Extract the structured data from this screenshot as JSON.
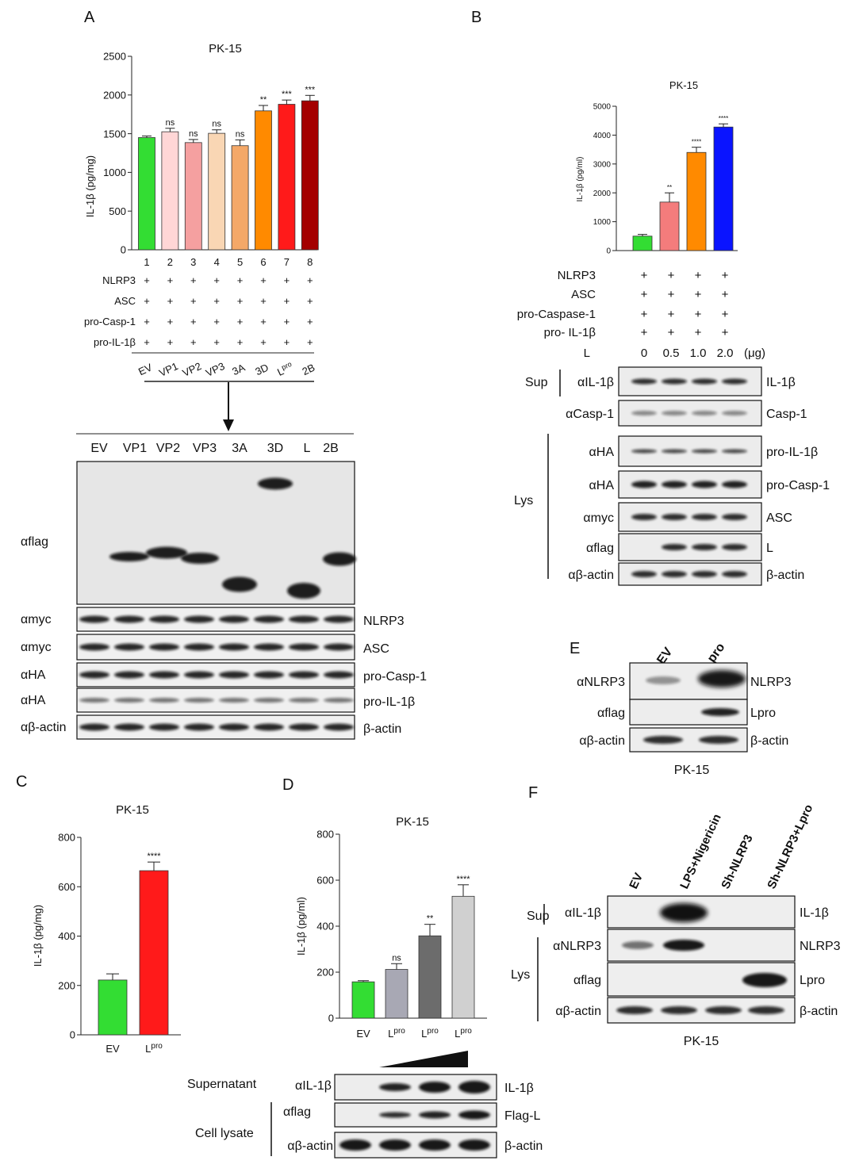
{
  "panels": {
    "A": {
      "label": "A",
      "chart_data": {
        "type": "bar",
        "title": "PK-15",
        "ylabel": "IL-1β (pg/mg)",
        "ylim": [
          0,
          2500
        ],
        "yticks": [
          0,
          500,
          1000,
          1500,
          2000,
          2500
        ],
        "categories": [
          "1",
          "2",
          "3",
          "4",
          "5",
          "6",
          "7",
          "8"
        ],
        "values": [
          1450,
          1525,
          1385,
          1505,
          1345,
          1795,
          1880,
          1925
        ],
        "errors": [
          20,
          45,
          40,
          45,
          75,
          70,
          55,
          70
        ],
        "colors": [
          "#33dd33",
          "#ffd6d6",
          "#f5a0a0",
          "#f9d6b4",
          "#f4a868",
          "#ff8a00",
          "#ff1a1a",
          "#a40000"
        ],
        "significance": [
          "",
          "ns",
          "ns",
          "ns",
          "ns",
          "**",
          "***",
          "***"
        ]
      },
      "rows": [
        {
          "name": "NLRP3",
          "marks": [
            "+",
            "+",
            "+",
            "+",
            "+",
            "+",
            "+",
            "+"
          ]
        },
        {
          "name": "ASC",
          "marks": [
            "+",
            "+",
            "+",
            "+",
            "+",
            "+",
            "+",
            "+"
          ]
        },
        {
          "name": "pro-Casp-1",
          "marks": [
            "+",
            "+",
            "+",
            "+",
            "+",
            "+",
            "+",
            "+"
          ]
        },
        {
          "name": "pro-IL-1β",
          "marks": [
            "+",
            "+",
            "+",
            "+",
            "+",
            "+",
            "+",
            "+"
          ]
        }
      ],
      "constructs": [
        "EV",
        "VP1",
        "VP2",
        "VP3",
        "3A",
        "3D",
        "L",
        "2B"
      ],
      "construct_L_sup": "pro",
      "blot_lanes": [
        "EV",
        "VP1",
        "VP2",
        "VP3",
        "3A",
        "3D",
        "L",
        "2B"
      ],
      "blot_left": [
        "αflag",
        "αmyc",
        "αmyc",
        "αHA",
        "αHA",
        "αβ-actin"
      ],
      "blot_right": [
        "NLRP3",
        "ASC",
        "pro-Casp-1",
        "pro-IL-1β",
        "β-actin"
      ]
    },
    "B": {
      "label": "B",
      "chart_data": {
        "type": "bar",
        "title": "PK-15",
        "ylabel": "IL-1β (pg/ml)",
        "ylim": [
          0,
          5000
        ],
        "yticks": [
          0,
          1000,
          2000,
          3000,
          4000,
          5000
        ],
        "categories": [
          "0",
          "0.5",
          "1.0",
          "2.0"
        ],
        "values": [
          500,
          1680,
          3400,
          4280
        ],
        "errors": [
          60,
          320,
          180,
          110
        ],
        "colors": [
          "#33dd33",
          "#f47c7c",
          "#ff8a00",
          "#0a14ff"
        ],
        "significance": [
          "",
          "**",
          "****",
          "****"
        ]
      },
      "rows": [
        {
          "name": "NLRP3",
          "marks": [
            "+",
            "+",
            "+",
            "+"
          ]
        },
        {
          "name": "ASC",
          "marks": [
            "+",
            "+",
            "+",
            "+"
          ]
        },
        {
          "name": "pro-Caspase-1",
          "marks": [
            "+",
            "+",
            "+",
            "+"
          ]
        },
        {
          "name": "pro- IL-1β",
          "marks": [
            "+",
            "+",
            "+",
            "+"
          ]
        }
      ],
      "dose_label": "L",
      "doses": [
        "0",
        "0.5",
        "1.0",
        "2.0"
      ],
      "dose_unit": "(μg)",
      "sup_label": "Sup",
      "lys_label": "Lys",
      "blot_left": [
        "αIL-1β",
        "αCasp-1",
        "αHA",
        "αHA",
        "αmyc",
        "αflag",
        "αβ-actin"
      ],
      "blot_right": [
        "IL-1β",
        "Casp-1",
        "pro-IL-1β",
        "pro-Casp-1",
        "ASC",
        "L",
        "β-actin"
      ]
    },
    "C": {
      "label": "C",
      "chart_data": {
        "type": "bar",
        "title": "PK-15",
        "ylabel": "IL-1β (pg/mg)",
        "ylim": [
          0,
          800
        ],
        "yticks": [
          0,
          200,
          400,
          600,
          800
        ],
        "categories": [
          "EV",
          "L"
        ],
        "category_sup": [
          "",
          "pro"
        ],
        "values": [
          222,
          665
        ],
        "errors": [
          25,
          35
        ],
        "colors": [
          "#33dd33",
          "#ff1a1a"
        ],
        "significance": [
          "",
          "****"
        ]
      }
    },
    "D": {
      "label": "D",
      "chart_data": {
        "type": "bar",
        "title": "PK-15",
        "ylabel": "IL-1β (pg/ml)",
        "ylim": [
          0,
          800
        ],
        "yticks": [
          0,
          200,
          400,
          600,
          800
        ],
        "categories": [
          "EV",
          "L",
          "L",
          "L"
        ],
        "category_sup": [
          "",
          "pro",
          "pro",
          "pro"
        ],
        "values": [
          158,
          212,
          358,
          530
        ],
        "errors": [
          5,
          25,
          50,
          50
        ],
        "colors": [
          "#33dd33",
          "#a8a8b4",
          "#6c6c6c",
          "#d0d0d0"
        ],
        "significance": [
          "",
          "ns",
          "**",
          "****"
        ]
      },
      "sup_label": "Supernatant",
      "lysate_label": "Cell lysate",
      "blot_left": [
        "αIL-1β",
        "αflag",
        "αβ-actin"
      ],
      "blot_right": [
        "IL-1β",
        "Flag-L",
        "β-actin"
      ]
    },
    "E": {
      "label": "E",
      "lanes": [
        "EV",
        "Lpro"
      ],
      "blot_left": [
        "αNLRP3",
        "αflag",
        "αβ-actin"
      ],
      "blot_right": [
        "NLRP3",
        "Lpro",
        "β-actin"
      ],
      "caption": "PK-15"
    },
    "F": {
      "label": "F",
      "lanes": [
        "EV",
        "LPS+Nigericin",
        "Sh-NLRP3",
        "Sh-NLRP3+Lpro"
      ],
      "sup_label": "Sup",
      "lys_label": "Lys",
      "blot_left": [
        "αIL-1β",
        "αNLRP3",
        "αflag",
        "αβ-actin"
      ],
      "blot_right": [
        "IL-1β",
        "NLRP3",
        "Lpro",
        "β-actin"
      ],
      "caption": "PK-15"
    }
  }
}
